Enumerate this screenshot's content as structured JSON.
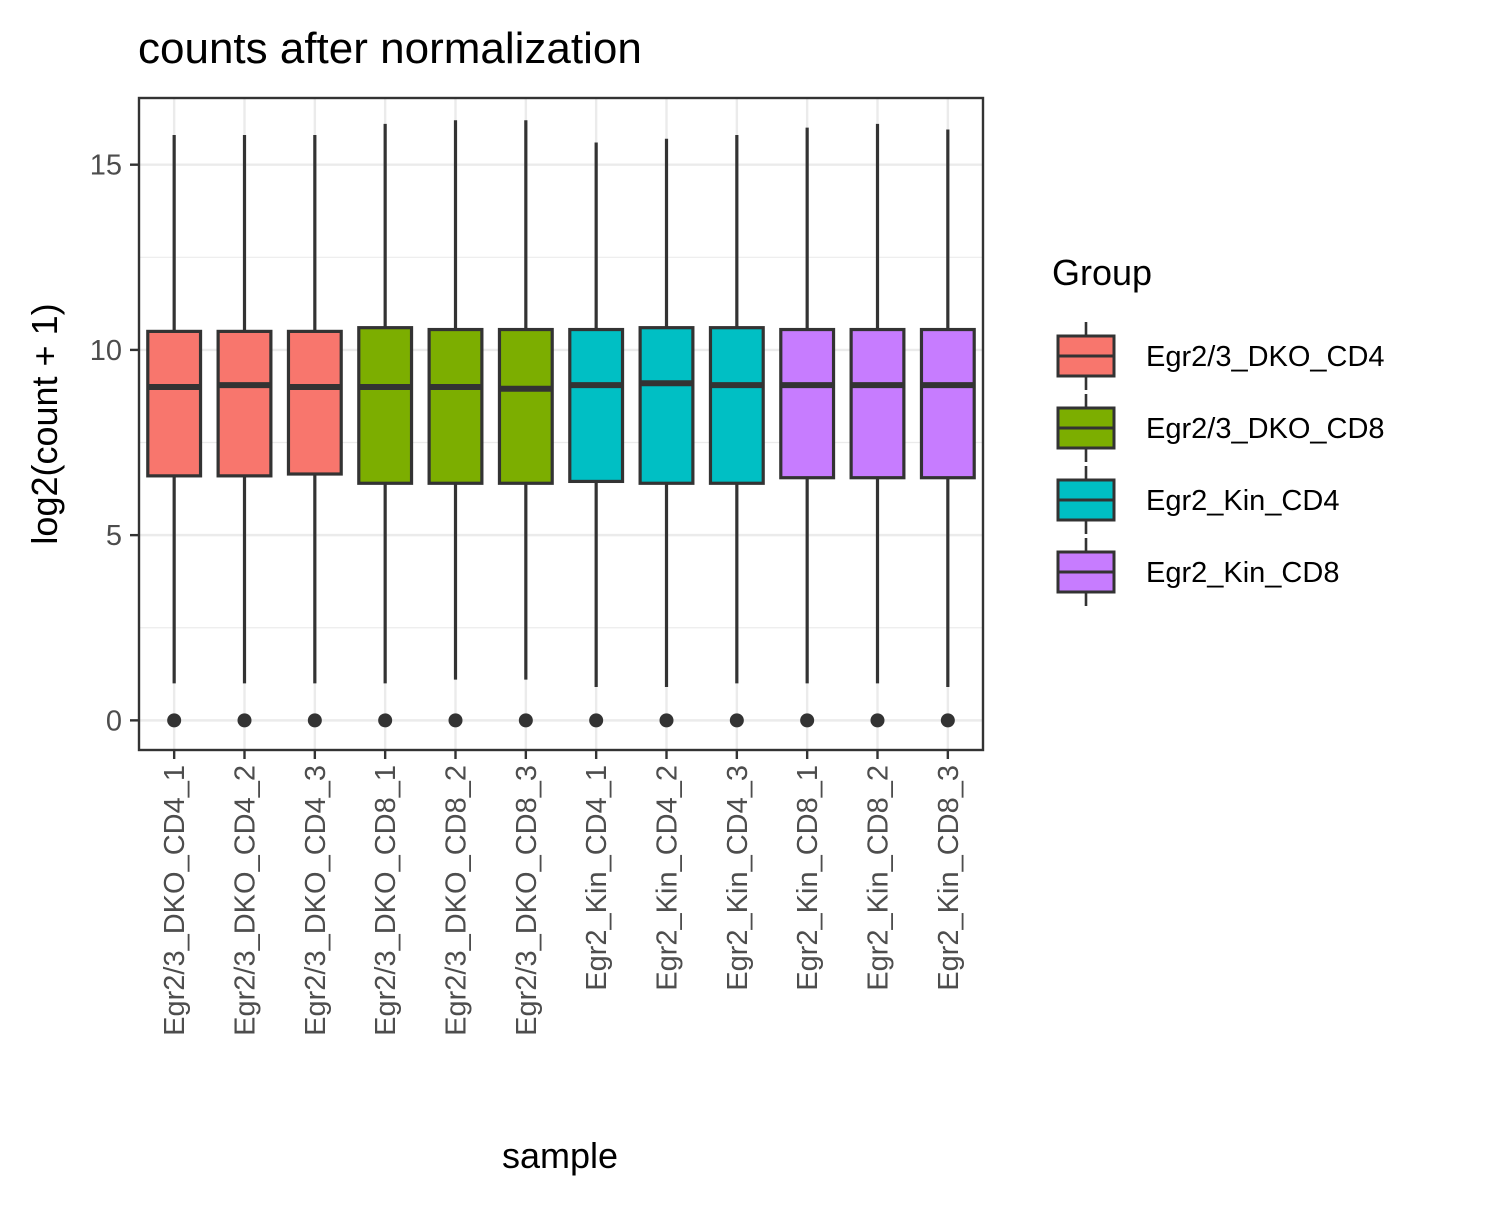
{
  "chart_data": {
    "type": "box",
    "title": "counts after normalization",
    "xlabel": "sample",
    "ylabel": "log2(count + 1)",
    "ylim": [
      -0.8,
      16.8
    ],
    "yticks": [
      0,
      5,
      10,
      15
    ],
    "grid": true,
    "legend": {
      "title": "Group",
      "placement": "right",
      "entries": [
        {
          "label": "Egr2/3_DKO_CD4",
          "color": "#F8766D"
        },
        {
          "label": "Egr2/3_DKO_CD8",
          "color": "#7CAE00"
        },
        {
          "label": "Egr2_Kin_CD4",
          "color": "#00BFC4"
        },
        {
          "label": "Egr2_Kin_CD8",
          "color": "#C77CFF"
        }
      ]
    },
    "boxes": [
      {
        "sample": "Egr2/3_DKO_CD4_1",
        "group": "Egr2/3_DKO_CD4",
        "lower_whisker": 1.0,
        "q1": 6.6,
        "median": 9.0,
        "q3": 10.5,
        "upper_whisker": 15.8,
        "outliers": [
          0
        ]
      },
      {
        "sample": "Egr2/3_DKO_CD4_2",
        "group": "Egr2/3_DKO_CD4",
        "lower_whisker": 1.0,
        "q1": 6.6,
        "median": 9.05,
        "q3": 10.5,
        "upper_whisker": 15.8,
        "outliers": [
          0
        ]
      },
      {
        "sample": "Egr2/3_DKO_CD4_3",
        "group": "Egr2/3_DKO_CD4",
        "lower_whisker": 1.0,
        "q1": 6.65,
        "median": 9.0,
        "q3": 10.5,
        "upper_whisker": 15.8,
        "outliers": [
          0
        ]
      },
      {
        "sample": "Egr2/3_DKO_CD8_1",
        "group": "Egr2/3_DKO_CD8",
        "lower_whisker": 1.0,
        "q1": 6.4,
        "median": 9.0,
        "q3": 10.6,
        "upper_whisker": 16.1,
        "outliers": [
          0
        ]
      },
      {
        "sample": "Egr2/3_DKO_CD8_2",
        "group": "Egr2/3_DKO_CD8",
        "lower_whisker": 1.1,
        "q1": 6.4,
        "median": 9.0,
        "q3": 10.55,
        "upper_whisker": 16.2,
        "outliers": [
          0
        ]
      },
      {
        "sample": "Egr2/3_DKO_CD8_3",
        "group": "Egr2/3_DKO_CD8",
        "lower_whisker": 1.1,
        "q1": 6.4,
        "median": 8.95,
        "q3": 10.55,
        "upper_whisker": 16.2,
        "outliers": [
          0
        ]
      },
      {
        "sample": "Egr2_Kin_CD4_1",
        "group": "Egr2_Kin_CD4",
        "lower_whisker": 0.9,
        "q1": 6.45,
        "median": 9.05,
        "q3": 10.55,
        "upper_whisker": 15.6,
        "outliers": [
          0
        ]
      },
      {
        "sample": "Egr2_Kin_CD4_2",
        "group": "Egr2_Kin_CD4",
        "lower_whisker": 0.9,
        "q1": 6.4,
        "median": 9.1,
        "q3": 10.6,
        "upper_whisker": 15.7,
        "outliers": [
          0
        ]
      },
      {
        "sample": "Egr2_Kin_CD4_3",
        "group": "Egr2_Kin_CD4",
        "lower_whisker": 1.0,
        "q1": 6.4,
        "median": 9.05,
        "q3": 10.6,
        "upper_whisker": 15.8,
        "outliers": [
          0
        ]
      },
      {
        "sample": "Egr2_Kin_CD8_1",
        "group": "Egr2_Kin_CD8",
        "lower_whisker": 1.0,
        "q1": 6.55,
        "median": 9.05,
        "q3": 10.55,
        "upper_whisker": 16.0,
        "outliers": [
          0
        ]
      },
      {
        "sample": "Egr2_Kin_CD8_2",
        "group": "Egr2_Kin_CD8",
        "lower_whisker": 1.0,
        "q1": 6.55,
        "median": 9.05,
        "q3": 10.55,
        "upper_whisker": 16.1,
        "outliers": [
          0
        ]
      },
      {
        "sample": "Egr2_Kin_CD8_3",
        "group": "Egr2_Kin_CD8",
        "lower_whisker": 0.9,
        "q1": 6.55,
        "median": 9.05,
        "q3": 10.55,
        "upper_whisker": 15.95,
        "outliers": [
          0
        ]
      }
    ]
  }
}
